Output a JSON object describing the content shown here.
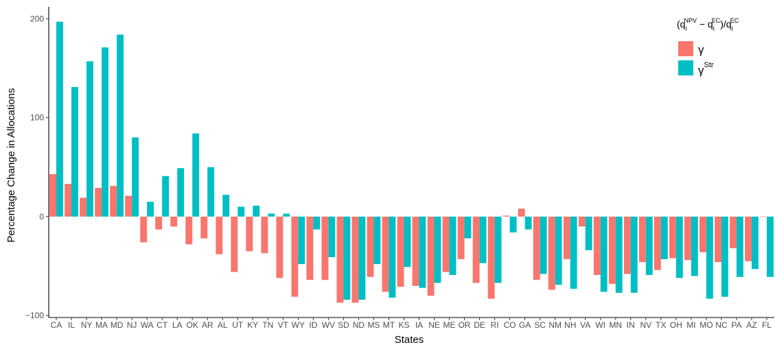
{
  "chart_data": {
    "type": "bar",
    "xlabel": "States",
    "ylabel": "Percentage Change in Allocations",
    "ylim": [
      -102,
      212
    ],
    "yticks": [
      -100,
      0,
      100,
      200
    ],
    "grid": false,
    "legend_position": "top-right",
    "legend": {
      "title": "(q_l^NPV − q_l^EC)/q_l^EC",
      "title_parts": {
        "open": "(q",
        "sub1": "l",
        "sup1": "NPV",
        "minus": " − q",
        "sub2": "l",
        "sup2": "EC",
        "slash": ")/q",
        "sub3": "l",
        "sup3": "EC"
      },
      "entries": [
        {
          "label": "γ",
          "sup": "",
          "color": "#F8766D"
        },
        {
          "label": "γ",
          "sup": "Str",
          "color": "#00BFC4"
        }
      ]
    },
    "categories": [
      "CA",
      "IL",
      "NY",
      "MA",
      "MD",
      "NJ",
      "WA",
      "CT",
      "LA",
      "OK",
      "AR",
      "AL",
      "UT",
      "KY",
      "TN",
      "VT",
      "WY",
      "ID",
      "WV",
      "SD",
      "ND",
      "MS",
      "MT",
      "KS",
      "IA",
      "NE",
      "ME",
      "OR",
      "DE",
      "RI",
      "CO",
      "GA",
      "SC",
      "NM",
      "NH",
      "VA",
      "WI",
      "MN",
      "IN",
      "NV",
      "TX",
      "OH",
      "MI",
      "MO",
      "NC",
      "PA",
      "AZ",
      "FL"
    ],
    "series": [
      {
        "name": "γ",
        "color": "#F8766D",
        "values": [
          43,
          33,
          19,
          29,
          31,
          21,
          -26,
          -13,
          -10,
          -28,
          -22,
          -38,
          -56,
          -35,
          -37,
          -62,
          -81,
          -64,
          -64,
          -87,
          -87,
          -61,
          -76,
          -71,
          -70,
          -80,
          -56,
          -43,
          -67,
          -83,
          1,
          8,
          -64,
          -74,
          -43,
          -10,
          -59,
          -68,
          -58,
          -46,
          -54,
          -42,
          -44,
          -36,
          -46,
          -32,
          -45,
          0
        ]
      },
      {
        "name": "γStr",
        "color": "#00BFC4",
        "values": [
          197,
          131,
          157,
          171,
          184,
          80,
          15,
          41,
          49,
          84,
          50,
          22,
          10,
          11,
          3,
          3,
          -48,
          -13,
          -41,
          -84,
          -84,
          -48,
          -82,
          -51,
          -72,
          -67,
          -59,
          -22,
          -47,
          -67,
          -16,
          -13,
          -58,
          -69,
          -73,
          -34,
          -76,
          -77,
          -77,
          -59,
          -43,
          -62,
          -60,
          -83,
          -81,
          -61,
          -53,
          -61
        ]
      }
    ]
  }
}
